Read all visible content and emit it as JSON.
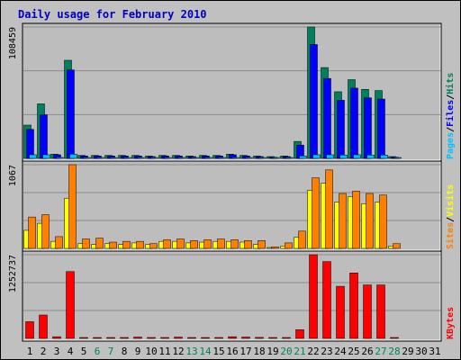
{
  "colors": {
    "background": "#c0c0c0",
    "panel_bg": "#bdbdbd",
    "grid": "#8c8c8c",
    "title": "#0000c0",
    "hits": "#00805c",
    "files": "#0000ff",
    "pages": "#00c0ff",
    "visits": "#ffff00",
    "sites": "#ff8000",
    "kbytes": "#ff0000",
    "weekend_label": "#00805c",
    "day_label": "#000000"
  },
  "chart_data": {
    "type": "bar",
    "title": "Daily usage for February 2010",
    "categories": [
      "1",
      "2",
      "3",
      "4",
      "5",
      "6",
      "7",
      "8",
      "9",
      "10",
      "11",
      "12",
      "13",
      "14",
      "15",
      "16",
      "17",
      "18",
      "19",
      "20",
      "21",
      "22",
      "23",
      "24",
      "25",
      "26",
      "27",
      "28",
      "29",
      "30",
      "31"
    ],
    "weekend_days": [
      "6",
      "7",
      "13",
      "14",
      "20",
      "21",
      "27",
      "28"
    ],
    "panels": [
      {
        "name": "hits-files-pages",
        "max_label": "108459",
        "max": 108459,
        "legend": [
          {
            "text": "Pages",
            "color": "#00c0ff"
          },
          {
            "text": "/",
            "color": "#000000"
          },
          {
            "text": "Files",
            "color": "#0000ff"
          },
          {
            "text": "/",
            "color": "#000000"
          },
          {
            "text": "Hits",
            "color": "#00805c"
          }
        ],
        "series": [
          {
            "name": "Hits",
            "color": "#00805c",
            "values": [
              27500,
              45000,
              3500,
              81000,
              2500,
              2500,
              2500,
              2500,
              2500,
              2000,
              2500,
              2500,
              2000,
              2500,
              2500,
              3500,
              2500,
              2000,
              1500,
              2000,
              14000,
              108459,
              75000,
              55000,
              65000,
              57000,
              56000,
              1500,
              0,
              0,
              0
            ]
          },
          {
            "name": "Files",
            "color": "#0000ff",
            "values": [
              24000,
              36000,
              3000,
              73000,
              2000,
              2000,
              2000,
              2000,
              2000,
              1500,
              2000,
              2000,
              1500,
              2000,
              2000,
              3000,
              2000,
              1500,
              1000,
              1500,
              11000,
              94000,
              66000,
              48000,
              58000,
              50000,
              49000,
              1000,
              0,
              0,
              0
            ]
          },
          {
            "name": "Pages",
            "color": "#00c0ff",
            "values": [
              3000,
              3000,
              800,
              3500,
              600,
              600,
              600,
              600,
              600,
              500,
              600,
              600,
              500,
              600,
              600,
              700,
              600,
              500,
              400,
              500,
              2000,
              3000,
              3000,
              2800,
              3000,
              2800,
              2800,
              300,
              0,
              0,
              0
            ]
          }
        ]
      },
      {
        "name": "sites-visits",
        "max_label": "1067",
        "max": 1067,
        "legend": [
          {
            "text": "Sites",
            "color": "#ff8000"
          },
          {
            "text": "/",
            "color": "#000000"
          },
          {
            "text": "Visits",
            "color": "#ffff00"
          }
        ],
        "series": [
          {
            "name": "Visits",
            "color": "#ffff00",
            "values": [
              230,
              320,
              90,
              640,
              60,
              50,
              60,
              50,
              70,
              50,
              90,
              90,
              70,
              80,
              90,
              90,
              80,
              50,
              10,
              30,
              140,
              740,
              830,
              590,
              660,
              570,
              590,
              30,
              0,
              0,
              0
            ]
          },
          {
            "name": "Sites",
            "color": "#ff8000",
            "values": [
              400,
              430,
              150,
              1067,
              120,
              130,
              80,
              90,
              90,
              60,
              110,
              120,
              100,
              110,
              120,
              110,
              100,
              100,
              20,
              70,
              220,
              900,
              1000,
              700,
              730,
              700,
              680,
              60,
              0,
              0,
              0
            ]
          }
        ]
      },
      {
        "name": "kbytes",
        "max_label": "1252737",
        "max": 1252737,
        "legend": [
          {
            "text": "KBytes",
            "color": "#ff0000"
          }
        ],
        "series": [
          {
            "name": "KBytes",
            "color": "#ff0000",
            "values": [
              250000,
              350000,
              25000,
              1000000,
              10000,
              10000,
              10000,
              10000,
              20000,
              10000,
              10000,
              20000,
              10000,
              10000,
              10000,
              25000,
              20000,
              15000,
              5000,
              10000,
              130000,
              1252737,
              1150000,
              780000,
              980000,
              800000,
              800000,
              10000,
              0,
              0,
              0
            ]
          }
        ]
      }
    ]
  }
}
